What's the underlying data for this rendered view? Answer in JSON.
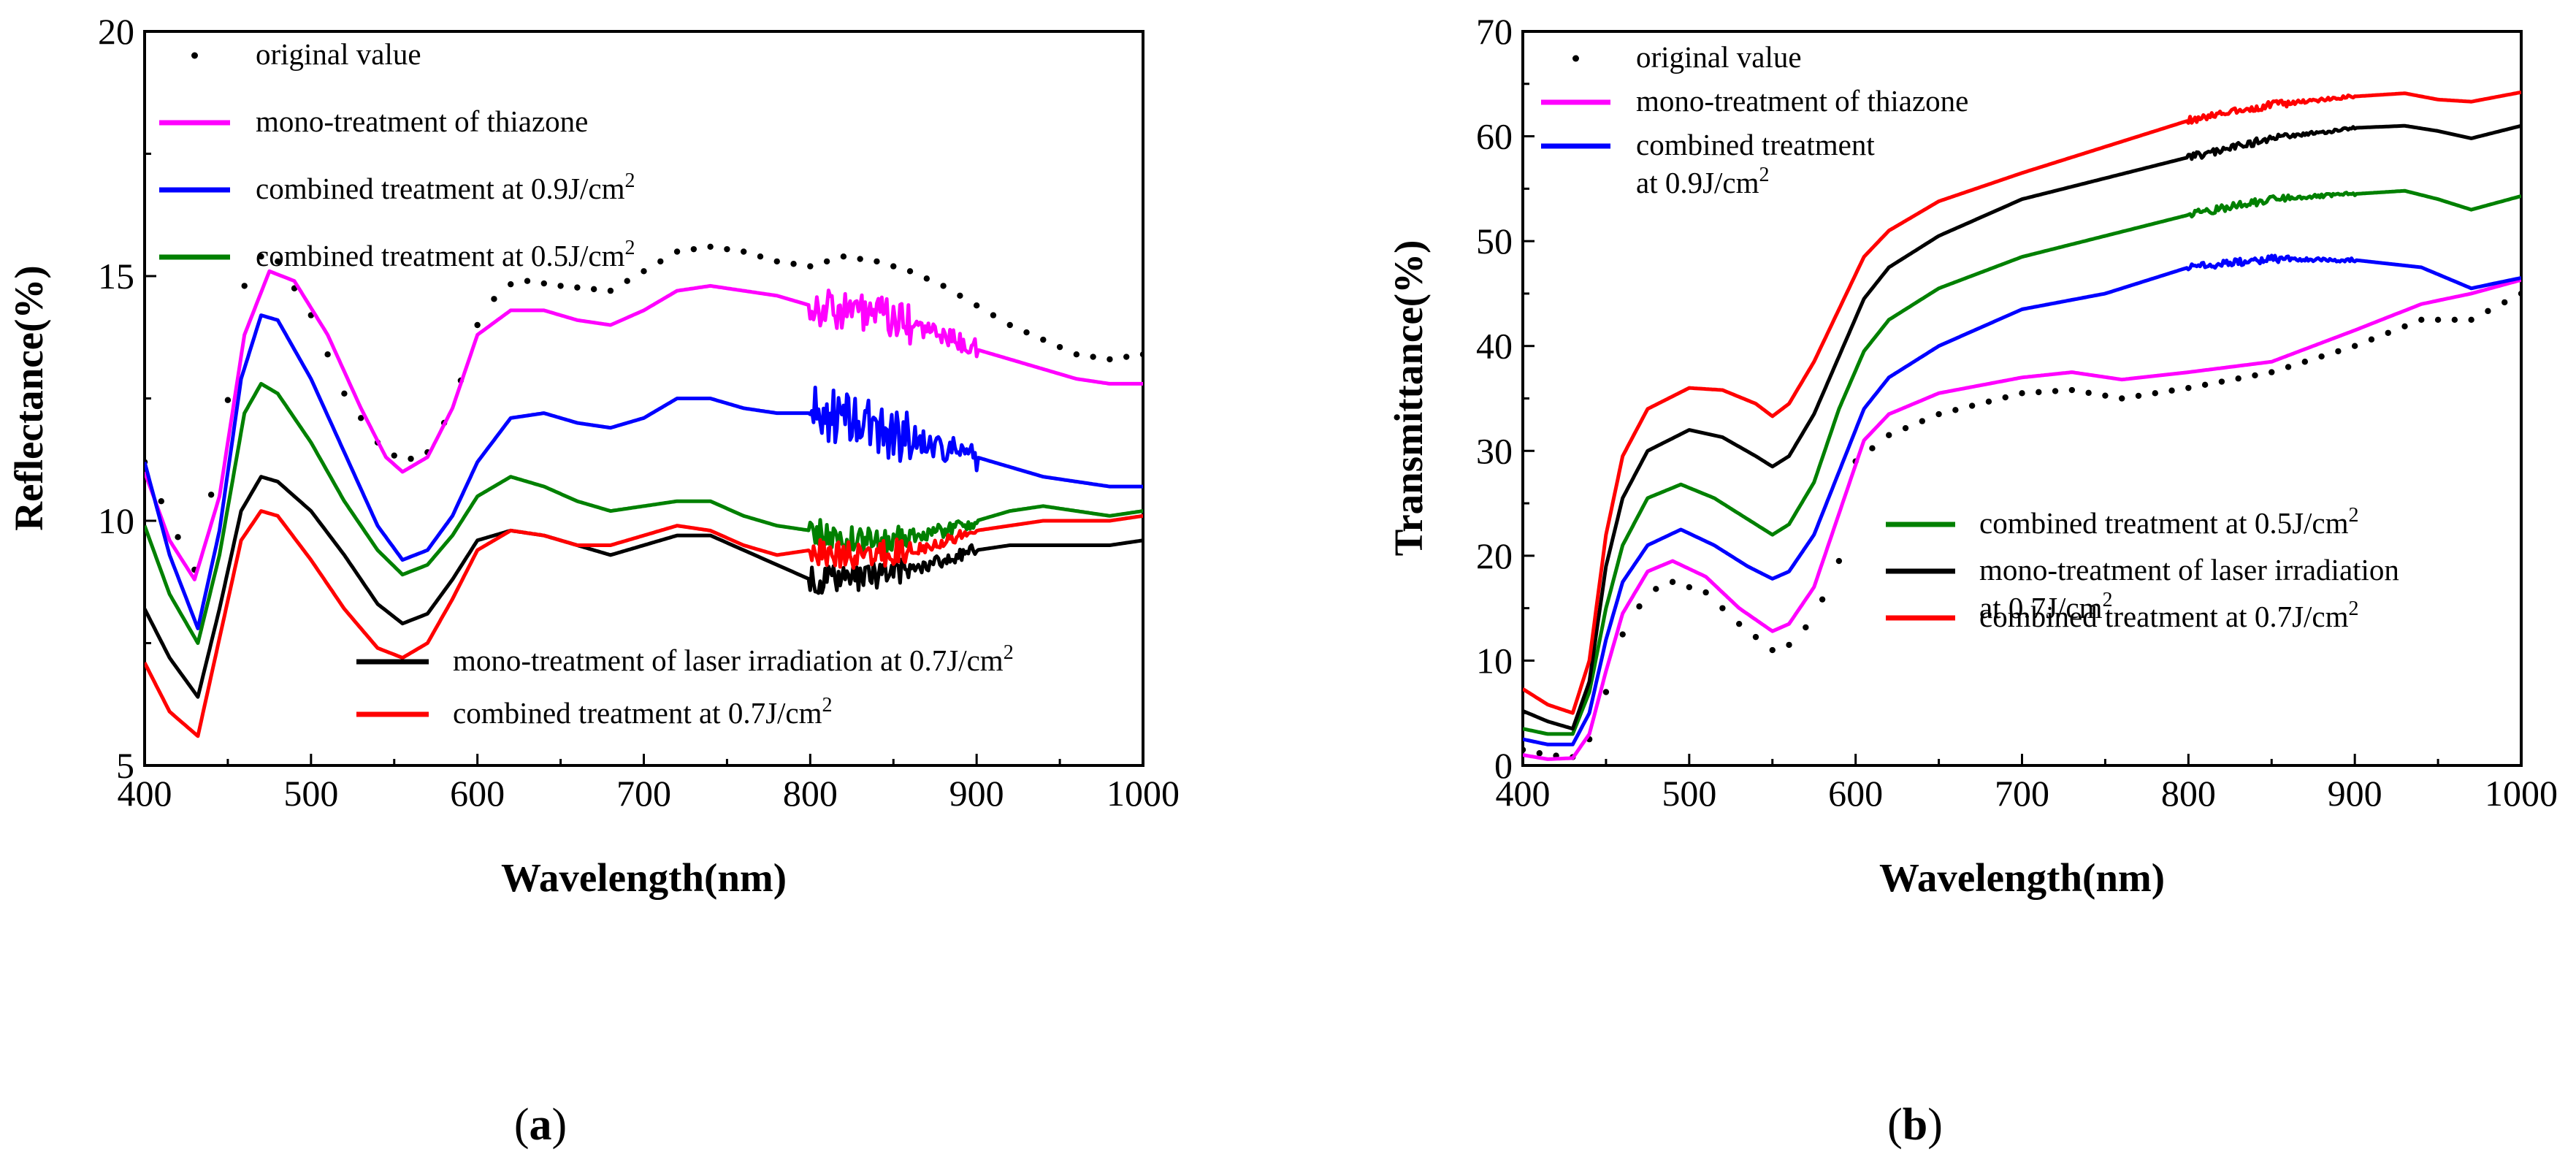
{
  "chart_data": [
    {
      "type": "line",
      "panel_label": "(a)",
      "panel_letter": "a",
      "xlabel": "Wavelength(nm)",
      "ylabel": "Reflectance(%)",
      "xlim": [
        400,
        1000
      ],
      "ylim": [
        5,
        20
      ],
      "xticks": [
        400,
        500,
        600,
        700,
        800,
        900,
        1000
      ],
      "yticks": [
        5,
        10,
        15,
        20
      ],
      "grid": false,
      "legend_entries": [
        {
          "key": "original",
          "label": "original value",
          "color": "#000000",
          "style": "dotted",
          "position": "top-left",
          "line": 0
        },
        {
          "key": "thiazone",
          "label": "mono-treatment of thiazone",
          "color": "#ff00ff",
          "style": "solid",
          "position": "top-left",
          "line": 1
        },
        {
          "key": "comb09",
          "label_main": "combined treatment at 0.9J/cm",
          "sup": "2",
          "color": "#0000ff",
          "style": "solid",
          "position": "top-left",
          "line": 2
        },
        {
          "key": "comb05",
          "label_main": "combined treatment at 0.5J/cm",
          "sup": "2",
          "color": "#008000",
          "style": "solid",
          "position": "top-left",
          "line": 3
        },
        {
          "key": "laser07",
          "label_main": "mono-treatment of laser irradiation at 0.7J/cm",
          "sup": "2",
          "color": "#000000",
          "style": "solid",
          "position": "bottom-center",
          "line": 0
        },
        {
          "key": "comb07",
          "label_main": "combined treatment at 0.7J/cm",
          "sup": "2",
          "color": "#ff0000",
          "style": "solid",
          "position": "bottom-center",
          "line": 1
        }
      ],
      "series": [
        {
          "key": "original",
          "name": "original value",
          "color": "#000000",
          "style": "dotted",
          "x": [
            400,
            415,
            430,
            445,
            460,
            470,
            480,
            500,
            520,
            540,
            555,
            570,
            585,
            600,
            615,
            630,
            650,
            680,
            700,
            720,
            740,
            760,
            780,
            800,
            820,
            840,
            860,
            880,
            900,
            920,
            940,
            960,
            980,
            1000
          ],
          "y": [
            11.2,
            10.0,
            9.0,
            11.3,
            14.8,
            15.4,
            15.3,
            14.2,
            12.6,
            11.6,
            11.2,
            11.4,
            12.3,
            14.0,
            14.8,
            14.9,
            14.8,
            14.7,
            15.1,
            15.5,
            15.6,
            15.5,
            15.3,
            15.2,
            15.4,
            15.3,
            15.1,
            14.8,
            14.4,
            14.0,
            13.7,
            13.4,
            13.3,
            13.4
          ]
        },
        {
          "key": "thiazone",
          "name": "mono-treatment of thiazone",
          "color": "#ff00ff",
          "style": "solid",
          "noise": 0.4,
          "x": [
            400,
            415,
            430,
            445,
            460,
            475,
            490,
            510,
            530,
            545,
            555,
            570,
            585,
            600,
            620,
            640,
            660,
            680,
            700,
            720,
            740,
            760,
            780,
            800,
            820,
            840,
            860,
            880,
            900,
            920,
            940,
            960,
            980,
            1000
          ],
          "y": [
            11.0,
            9.6,
            8.8,
            10.5,
            13.8,
            15.1,
            14.9,
            13.8,
            12.3,
            11.3,
            11.0,
            11.3,
            12.3,
            13.8,
            14.3,
            14.3,
            14.1,
            14.0,
            14.3,
            14.7,
            14.8,
            14.7,
            14.6,
            14.4,
            14.3,
            14.2,
            14.0,
            13.8,
            13.5,
            13.3,
            13.1,
            12.9,
            12.8,
            12.8
          ]
        },
        {
          "key": "comb09",
          "name": "combined treatment at 0.9J/cm2",
          "color": "#0000ff",
          "style": "solid",
          "noise": 0.55,
          "x": [
            400,
            415,
            432,
            445,
            458,
            470,
            480,
            500,
            520,
            540,
            555,
            570,
            585,
            600,
            620,
            640,
            660,
            680,
            700,
            720,
            740,
            760,
            780,
            800,
            820,
            840,
            860,
            880,
            900,
            920,
            940,
            960,
            980,
            1000
          ],
          "y": [
            11.2,
            9.3,
            7.8,
            9.8,
            12.9,
            14.2,
            14.1,
            12.9,
            11.4,
            9.9,
            9.2,
            9.4,
            10.1,
            11.2,
            12.1,
            12.2,
            12.0,
            11.9,
            12.1,
            12.5,
            12.5,
            12.3,
            12.2,
            12.2,
            12.1,
            11.9,
            11.7,
            11.5,
            11.3,
            11.1,
            10.9,
            10.8,
            10.7,
            10.7
          ]
        },
        {
          "key": "comb05",
          "name": "combined treatment at 0.5J/cm2",
          "color": "#008000",
          "style": "solid",
          "noise": 0.28,
          "x": [
            400,
            415,
            432,
            445,
            460,
            470,
            480,
            500,
            520,
            540,
            555,
            570,
            585,
            600,
            620,
            640,
            660,
            680,
            700,
            720,
            740,
            760,
            780,
            800,
            820,
            840,
            860,
            880,
            900,
            920,
            940,
            960,
            980,
            1000
          ],
          "y": [
            9.9,
            8.5,
            7.5,
            9.3,
            12.2,
            12.8,
            12.6,
            11.6,
            10.4,
            9.4,
            8.9,
            9.1,
            9.7,
            10.5,
            10.9,
            10.7,
            10.4,
            10.2,
            10.3,
            10.4,
            10.4,
            10.1,
            9.9,
            9.8,
            9.6,
            9.6,
            9.7,
            9.8,
            10.0,
            10.2,
            10.3,
            10.2,
            10.1,
            10.2
          ]
        },
        {
          "key": "laser07",
          "name": "mono-treatment of laser irradiation at 0.7J/cm2",
          "color": "#000000",
          "style": "solid",
          "noise": 0.28,
          "x": [
            400,
            415,
            432,
            445,
            458,
            470,
            480,
            500,
            520,
            540,
            555,
            570,
            585,
            600,
            620,
            640,
            660,
            680,
            700,
            720,
            740,
            760,
            780,
            800,
            820,
            840,
            860,
            880,
            900,
            920,
            940,
            960,
            980,
            1000
          ],
          "y": [
            8.2,
            7.2,
            6.4,
            8.2,
            10.2,
            10.9,
            10.8,
            10.2,
            9.3,
            8.3,
            7.9,
            8.1,
            8.8,
            9.6,
            9.8,
            9.7,
            9.5,
            9.3,
            9.5,
            9.7,
            9.7,
            9.4,
            9.1,
            8.8,
            8.8,
            8.9,
            9.0,
            9.2,
            9.4,
            9.5,
            9.5,
            9.5,
            9.5,
            9.6
          ]
        },
        {
          "key": "comb07",
          "name": "combined treatment at 0.7J/cm2",
          "color": "#ff0000",
          "style": "solid",
          "noise": 0.28,
          "x": [
            400,
            415,
            432,
            445,
            458,
            470,
            480,
            500,
            520,
            540,
            555,
            570,
            585,
            600,
            620,
            640,
            660,
            680,
            700,
            720,
            740,
            760,
            780,
            800,
            820,
            840,
            860,
            880,
            900,
            920,
            940,
            960,
            980,
            1000
          ],
          "y": [
            7.1,
            6.1,
            5.6,
            7.6,
            9.6,
            10.2,
            10.1,
            9.2,
            8.2,
            7.4,
            7.2,
            7.5,
            8.4,
            9.4,
            9.8,
            9.7,
            9.5,
            9.5,
            9.7,
            9.9,
            9.8,
            9.5,
            9.3,
            9.4,
            9.3,
            9.3,
            9.4,
            9.6,
            9.8,
            9.9,
            10.0,
            10.0,
            10.0,
            10.1
          ]
        }
      ]
    },
    {
      "type": "line",
      "panel_label": "(b)",
      "panel_letter": "b",
      "xlabel": "Wavelength(nm)",
      "ylabel": "Transmittance(%)",
      "xlim": [
        400,
        1000
      ],
      "ylim": [
        0,
        70
      ],
      "xticks": [
        400,
        500,
        600,
        700,
        800,
        900,
        1000
      ],
      "yticks": [
        0,
        10,
        20,
        30,
        40,
        50,
        60,
        70
      ],
      "grid": false,
      "legend_entries": [
        {
          "key": "original",
          "label": "original value",
          "color": "#000000",
          "style": "dotted",
          "position": "top-left",
          "line": 0
        },
        {
          "key": "thiazone",
          "label": "mono-treatment of thiazone",
          "color": "#ff00ff",
          "style": "solid",
          "position": "top-left",
          "line": 1
        },
        {
          "key": "comb09",
          "label": "combined treatment",
          "label2_main": "at 0.9J/cm",
          "sup": "2",
          "color": "#0000ff",
          "style": "solid",
          "position": "top-left",
          "line": 2
        },
        {
          "key": "comb05",
          "label_main": "combined treatment at 0.5J/cm",
          "sup": "2",
          "color": "#008000",
          "style": "solid",
          "position": "center-right",
          "line": 0
        },
        {
          "key": "laser07",
          "label": "mono-treatment of laser irradiation",
          "label2_main": "at 0.7J/cm",
          "sup": "2",
          "color": "#000000",
          "style": "solid",
          "position": "center-right",
          "line": 1
        },
        {
          "key": "comb07",
          "label_main": "combined treatment at 0.7J/cm",
          "sup": "2",
          "color": "#ff0000",
          "style": "solid",
          "position": "center-right",
          "line": 2
        }
      ],
      "series": [
        {
          "key": "original",
          "name": "original value",
          "color": "#000000",
          "style": "dotted",
          "x": [
            400,
            415,
            430,
            440,
            450,
            460,
            475,
            490,
            510,
            530,
            550,
            560,
            575,
            590,
            600,
            620,
            650,
            700,
            730,
            760,
            800,
            850,
            900,
            940,
            970,
            1000
          ],
          "y": [
            1.5,
            1.0,
            0.8,
            2.5,
            7.0,
            12.5,
            16.5,
            17.5,
            16.5,
            13.5,
            11.0,
            11.5,
            14.0,
            19.5,
            29.0,
            31.5,
            33.5,
            35.5,
            35.8,
            35.0,
            36.0,
            37.5,
            40.0,
            42.5,
            42.5,
            45.0
          ]
        },
        {
          "key": "thiazone",
          "name": "mono-treatment of thiazone",
          "color": "#ff00ff",
          "style": "solid",
          "x": [
            400,
            415,
            430,
            440,
            450,
            460,
            475,
            490,
            510,
            530,
            550,
            560,
            575,
            590,
            605,
            620,
            650,
            700,
            730,
            760,
            800,
            850,
            900,
            940,
            970,
            1000
          ],
          "y": [
            1.0,
            0.6,
            0.7,
            3.0,
            9.0,
            14.5,
            18.5,
            19.5,
            18.0,
            15.0,
            12.8,
            13.5,
            17.0,
            24.0,
            31.0,
            33.5,
            35.5,
            37.0,
            37.5,
            36.8,
            37.5,
            38.5,
            41.5,
            44.0,
            45.0,
            46.3
          ]
        },
        {
          "key": "comb09",
          "name": "combined treatment at 0.9J/cm2",
          "color": "#0000ff",
          "style": "solid",
          "noise": 0.35,
          "x": [
            400,
            415,
            430,
            440,
            450,
            460,
            475,
            495,
            515,
            535,
            550,
            560,
            575,
            590,
            605,
            620,
            650,
            700,
            750,
            800,
            850,
            900,
            940,
            970,
            1000
          ],
          "y": [
            2.5,
            2.0,
            2.0,
            5.0,
            12.0,
            17.5,
            21.0,
            22.5,
            21.0,
            19.0,
            17.8,
            18.5,
            22.0,
            28.0,
            34.0,
            37.0,
            40.0,
            43.5,
            45.0,
            47.5,
            48.3,
            48.2,
            47.5,
            45.5,
            46.5
          ]
        },
        {
          "key": "comb05",
          "name": "combined treatment at 0.5J/cm2",
          "color": "#008000",
          "style": "solid",
          "noise": 0.35,
          "x": [
            400,
            415,
            430,
            440,
            450,
            460,
            475,
            495,
            515,
            535,
            550,
            560,
            575,
            590,
            605,
            620,
            650,
            700,
            750,
            800,
            850,
            900,
            930,
            950,
            970,
            1000
          ],
          "y": [
            3.5,
            3.0,
            3.0,
            7.0,
            15.0,
            21.0,
            25.5,
            26.8,
            25.5,
            23.5,
            22.0,
            23.0,
            27.0,
            34.0,
            39.5,
            42.5,
            45.5,
            48.5,
            50.5,
            52.5,
            54.0,
            54.5,
            54.8,
            54.0,
            53.0,
            54.3
          ]
        },
        {
          "key": "laser07",
          "name": "mono-treatment of laser irradiation at 0.7J/cm2",
          "color": "#000000",
          "style": "solid",
          "noise": 0.35,
          "x": [
            400,
            415,
            430,
            440,
            450,
            460,
            475,
            500,
            520,
            540,
            550,
            560,
            575,
            590,
            605,
            620,
            650,
            700,
            750,
            800,
            850,
            900,
            930,
            950,
            970,
            1000
          ],
          "y": [
            5.2,
            4.2,
            3.5,
            8.0,
            19.0,
            25.5,
            30.0,
            32.0,
            31.3,
            29.5,
            28.5,
            29.5,
            33.5,
            39.0,
            44.5,
            47.5,
            50.5,
            54.0,
            56.0,
            58.0,
            59.8,
            60.8,
            61.0,
            60.5,
            59.8,
            61.0
          ]
        },
        {
          "key": "comb07",
          "name": "combined treatment at 0.7J/cm2",
          "color": "#ff0000",
          "style": "solid",
          "noise": 0.35,
          "x": [
            400,
            415,
            430,
            440,
            450,
            460,
            475,
            500,
            520,
            540,
            550,
            560,
            575,
            590,
            605,
            620,
            650,
            700,
            750,
            800,
            850,
            900,
            930,
            950,
            970,
            1000
          ],
          "y": [
            7.3,
            5.8,
            5.0,
            10.0,
            22.0,
            29.5,
            34.0,
            36.0,
            35.8,
            34.5,
            33.3,
            34.5,
            38.5,
            43.5,
            48.5,
            51.0,
            53.8,
            56.5,
            59.0,
            61.5,
            63.0,
            63.8,
            64.1,
            63.5,
            63.3,
            64.2
          ]
        }
      ]
    }
  ]
}
